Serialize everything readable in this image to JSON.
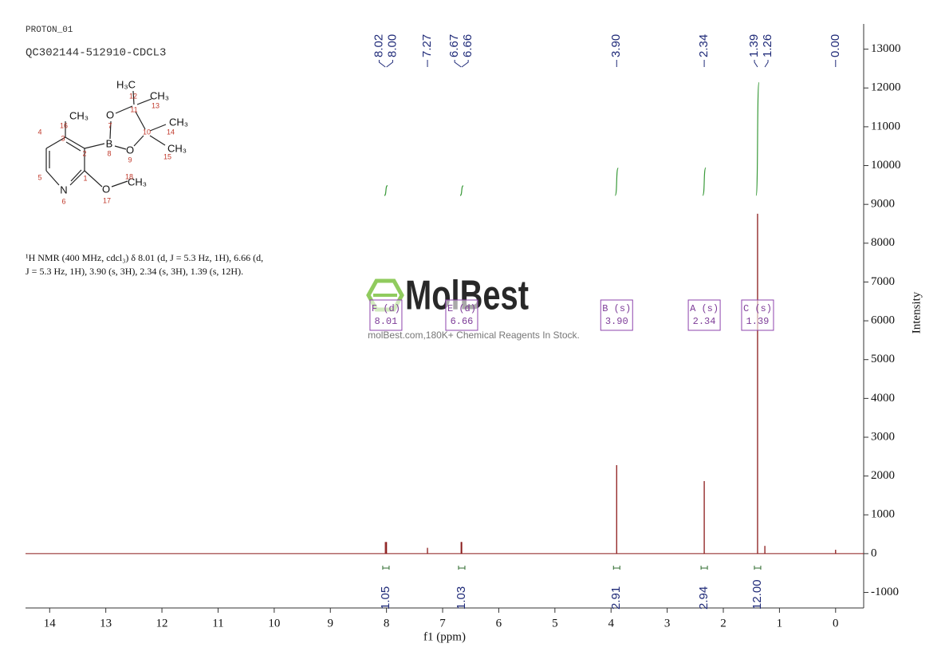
{
  "chart_data": {
    "type": "spectrum",
    "experiment": "PROTON_01",
    "sample": "QC302144-512910-CDCL3",
    "description": [
      "¹H NMR (400 MHz, cdcl₃) δ 8.01 (d, J = 5.3 Hz, 1H), 6.66 (d,",
      "J = 5.3 Hz, 1H), 3.90 (s, 3H), 2.34 (s, 3H), 1.39 (s, 12H)."
    ],
    "structure": {
      "atoms": [
        "H₃C",
        "CH₃",
        "O",
        "CH₃",
        "CH₃",
        "B",
        "O",
        "CH₃",
        "N",
        "O",
        "CH₃"
      ],
      "numbers": [
        12,
        13,
        7,
        11,
        10,
        14,
        15,
        8,
        9,
        16,
        3,
        4,
        2,
        5,
        1,
        6,
        17,
        18
      ]
    },
    "watermark": {
      "logo": "MolBest",
      "text": "molBest.com,180K+ Chemical Reagents In Stock."
    },
    "x_label": "f1 (ppm)",
    "y_label": "Intensity",
    "xlim": [
      14.43,
      -0.5
    ],
    "xticks": [
      14,
      13,
      12,
      11,
      10,
      9,
      8,
      7,
      6,
      5,
      4,
      3,
      2,
      1,
      0
    ],
    "ylim": [
      -1400,
      13650
    ],
    "yticks": [
      -1000,
      0,
      1000,
      2000,
      3000,
      4000,
      5000,
      6000,
      7000,
      8000,
      9000,
      10000,
      11000,
      12000,
      13000
    ],
    "series": [
      {
        "color": "#8b1a1a",
        "x": [
          8.02,
          8.0,
          7.27,
          6.67,
          6.66,
          3.9,
          2.34,
          1.39,
          1.26,
          0.0
        ],
        "values": [
          300,
          300,
          150,
          300,
          300,
          2280,
          1870,
          8760,
          200,
          100
        ]
      }
    ],
    "peak_labels": [
      8.02,
      {
        "value": 8,
        "label": "8.00"
      },
      7.27,
      6.67,
      6.66,
      {
        "value": 3.9,
        "label": "3.90"
      },
      2.34,
      1.39,
      1.26,
      {
        "value": 0,
        "label": "0.00"
      }
    ],
    "integral_color": "#3a9a3a",
    "integral_x": [
      8.01,
      6.66,
      3.9,
      2.34,
      1.39
    ],
    "integrals": [
      1.05,
      1.03,
      2.91,
      2.94,
      {
        "value": 12,
        "label": "12.00"
      }
    ],
    "multiplets": [
      {
        "label": "F (d)",
        "shift": 8.01
      },
      {
        "label": "E (d)",
        "shift": 6.66
      },
      {
        "label": "B (s)",
        "shift": {
          "value": 3.9,
          "label": "3.90"
        }
      },
      {
        "label": "A (s)",
        "shift": 2.34
      },
      {
        "label": "C (s)",
        "shift": 1.39
      }
    ]
  }
}
